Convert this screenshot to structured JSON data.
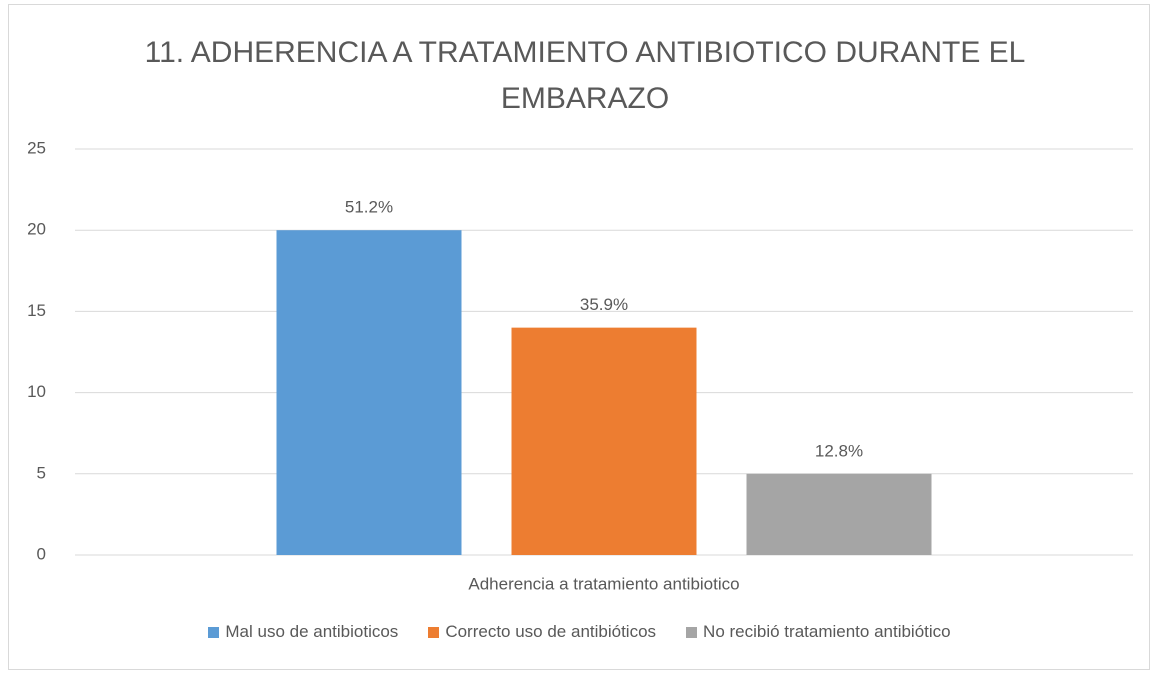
{
  "chart_data": {
    "type": "bar",
    "title": "11. ADHERENCIA A TRATAMIENTO ANTIBIOTICO DURANTE EL EMBARAZO",
    "categories": [
      "Adherencia a tratamiento antibiotico"
    ],
    "series": [
      {
        "name": "Mal uso de antibioticos",
        "color": "#5b9bd5",
        "values": [
          20
        ],
        "value_labels": [
          "51.2%"
        ]
      },
      {
        "name": "Correcto uso de antibióticos",
        "color": "#ed7d31",
        "values": [
          14
        ],
        "value_labels": [
          "35.9%"
        ]
      },
      {
        "name": "No recibió tratamiento antibiótico",
        "color": "#a5a5a5",
        "values": [
          5
        ],
        "value_labels": [
          "12.8%"
        ]
      }
    ],
    "ylim": [
      0,
      25
    ],
    "yticks": [
      0,
      5,
      10,
      15,
      20,
      25
    ],
    "grid": true,
    "legend": "bottom"
  }
}
